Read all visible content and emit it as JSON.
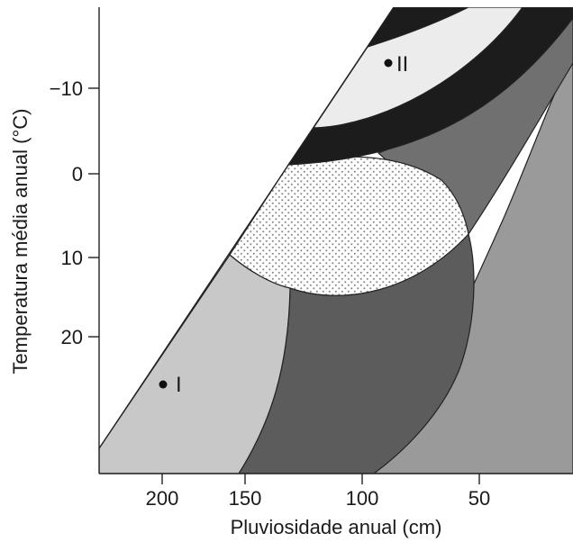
{
  "axes": {
    "x_title": "Pluviosidade anual (cm)",
    "y_title": "Temperatura média anual (°C)",
    "x_ticks": [
      "200",
      "150",
      "100",
      "50"
    ],
    "y_ticks": [
      "−10",
      "0",
      "10",
      "20"
    ]
  },
  "points": [
    {
      "label": "I"
    },
    {
      "label": "II"
    }
  ],
  "colors": {
    "background": "#ffffff",
    "light_gray": "#c8c8c8",
    "dark_gray": "#5c5c5c",
    "mid_gray": "#9a9a9a",
    "charcoal": "#707070",
    "black_band": "#1c1c1c",
    "pale": "#ececec",
    "stipple": "#8a8a8a",
    "outline": "#222222"
  }
}
